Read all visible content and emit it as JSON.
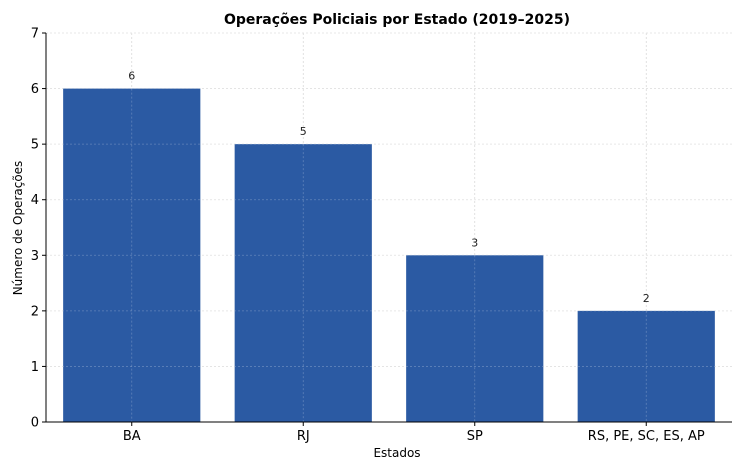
{
  "chart_data": {
    "type": "bar",
    "title": "Operações Policiais por Estado (2019–2025)",
    "xlabel": "Estados",
    "ylabel": "Número de Operações",
    "categories": [
      "BA",
      "RJ",
      "SP",
      "RS, PE, SC, ES, AP"
    ],
    "values": [
      6,
      5,
      3,
      2
    ],
    "data_labels": [
      "6",
      "5",
      "3",
      "2"
    ],
    "ylim": [
      0,
      7
    ],
    "yticks": [
      0,
      1,
      2,
      3,
      4,
      5,
      6,
      7
    ],
    "grid": true,
    "bar_color": "#2b5aa3"
  }
}
